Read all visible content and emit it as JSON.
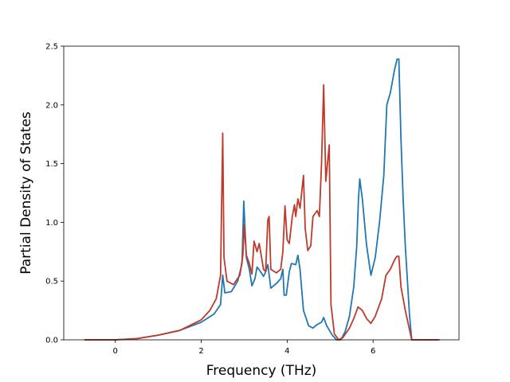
{
  "chart_data": {
    "type": "line",
    "title": "",
    "xlabel": "Frequency (THz)",
    "ylabel": "Partial Density of States",
    "xlim": [
      -1.2,
      8.0
    ],
    "ylim": [
      0,
      2.5
    ],
    "xticks": [
      0,
      2,
      4,
      6
    ],
    "yticks": [
      0.0,
      0.5,
      1.0,
      1.5,
      2.0,
      2.5
    ],
    "xtick_labels": [
      "0",
      "2",
      "4",
      "6"
    ],
    "ytick_labels": [
      "0.0",
      "0.5",
      "1.0",
      "1.5",
      "2.0",
      "2.5"
    ],
    "grid": false,
    "series": [
      {
        "color": "#1f77b4",
        "points": [
          [
            -0.72,
            0.0
          ],
          [
            0.0,
            0.0
          ],
          [
            0.5,
            0.01
          ],
          [
            1.0,
            0.04
          ],
          [
            1.5,
            0.08
          ],
          [
            2.0,
            0.15
          ],
          [
            2.3,
            0.22
          ],
          [
            2.45,
            0.3
          ],
          [
            2.5,
            0.55
          ],
          [
            2.55,
            0.4
          ],
          [
            2.7,
            0.41
          ],
          [
            2.85,
            0.5
          ],
          [
            2.95,
            0.65
          ],
          [
            2.99,
            1.18
          ],
          [
            3.05,
            0.7
          ],
          [
            3.12,
            0.6
          ],
          [
            3.18,
            0.46
          ],
          [
            3.25,
            0.52
          ],
          [
            3.3,
            0.62
          ],
          [
            3.38,
            0.58
          ],
          [
            3.45,
            0.54
          ],
          [
            3.5,
            0.58
          ],
          [
            3.55,
            0.64
          ],
          [
            3.62,
            0.44
          ],
          [
            3.75,
            0.48
          ],
          [
            3.85,
            0.52
          ],
          [
            3.9,
            0.6
          ],
          [
            3.93,
            0.38
          ],
          [
            3.98,
            0.38
          ],
          [
            4.05,
            0.58
          ],
          [
            4.1,
            0.65
          ],
          [
            4.2,
            0.64
          ],
          [
            4.25,
            0.72
          ],
          [
            4.3,
            0.6
          ],
          [
            4.38,
            0.25
          ],
          [
            4.5,
            0.12
          ],
          [
            4.6,
            0.1
          ],
          [
            4.7,
            0.13
          ],
          [
            4.8,
            0.15
          ],
          [
            4.85,
            0.19
          ],
          [
            4.92,
            0.12
          ],
          [
            5.05,
            0.04
          ],
          [
            5.15,
            0.0
          ],
          [
            5.25,
            0.0
          ],
          [
            5.35,
            0.07
          ],
          [
            5.45,
            0.2
          ],
          [
            5.55,
            0.45
          ],
          [
            5.62,
            0.8
          ],
          [
            5.66,
            1.2
          ],
          [
            5.69,
            1.37
          ],
          [
            5.75,
            1.2
          ],
          [
            5.85,
            0.8
          ],
          [
            5.95,
            0.55
          ],
          [
            6.05,
            0.7
          ],
          [
            6.15,
            1.0
          ],
          [
            6.25,
            1.4
          ],
          [
            6.32,
            2.0
          ],
          [
            6.4,
            2.1
          ],
          [
            6.5,
            2.3
          ],
          [
            6.56,
            2.39
          ],
          [
            6.6,
            2.39
          ],
          [
            6.65,
            1.7
          ],
          [
            6.7,
            1.2
          ],
          [
            6.75,
            0.8
          ],
          [
            6.85,
            0.2
          ],
          [
            6.9,
            0.0
          ],
          [
            7.5,
            0.0
          ]
        ]
      },
      {
        "color": "#c0392b",
        "points": [
          [
            -0.72,
            0.0
          ],
          [
            0.0,
            0.0
          ],
          [
            0.5,
            0.01
          ],
          [
            1.0,
            0.04
          ],
          [
            1.5,
            0.08
          ],
          [
            2.0,
            0.17
          ],
          [
            2.2,
            0.25
          ],
          [
            2.35,
            0.35
          ],
          [
            2.45,
            0.55
          ],
          [
            2.5,
            1.76
          ],
          [
            2.53,
            0.7
          ],
          [
            2.6,
            0.5
          ],
          [
            2.75,
            0.47
          ],
          [
            2.9,
            0.55
          ],
          [
            2.97,
            0.72
          ],
          [
            3.0,
            0.98
          ],
          [
            3.05,
            0.72
          ],
          [
            3.12,
            0.65
          ],
          [
            3.18,
            0.56
          ],
          [
            3.23,
            0.84
          ],
          [
            3.3,
            0.75
          ],
          [
            3.35,
            0.82
          ],
          [
            3.45,
            0.6
          ],
          [
            3.5,
            0.58
          ],
          [
            3.55,
            1.02
          ],
          [
            3.58,
            1.05
          ],
          [
            3.62,
            0.6
          ],
          [
            3.75,
            0.57
          ],
          [
            3.85,
            0.6
          ],
          [
            3.9,
            0.75
          ],
          [
            3.95,
            1.14
          ],
          [
            4.0,
            0.85
          ],
          [
            4.05,
            0.82
          ],
          [
            4.12,
            1.05
          ],
          [
            4.17,
            1.15
          ],
          [
            4.2,
            1.05
          ],
          [
            4.25,
            1.2
          ],
          [
            4.3,
            1.12
          ],
          [
            4.38,
            1.4
          ],
          [
            4.42,
            0.95
          ],
          [
            4.48,
            0.76
          ],
          [
            4.55,
            0.8
          ],
          [
            4.6,
            1.05
          ],
          [
            4.7,
            1.1
          ],
          [
            4.75,
            1.05
          ],
          [
            4.8,
            1.5
          ],
          [
            4.85,
            2.17
          ],
          [
            4.9,
            1.35
          ],
          [
            4.98,
            1.66
          ],
          [
            5.02,
            0.3
          ],
          [
            5.1,
            0.05
          ],
          [
            5.2,
            0.0
          ],
          [
            5.3,
            0.02
          ],
          [
            5.45,
            0.1
          ],
          [
            5.55,
            0.18
          ],
          [
            5.65,
            0.28
          ],
          [
            5.75,
            0.25
          ],
          [
            5.85,
            0.18
          ],
          [
            5.95,
            0.14
          ],
          [
            6.05,
            0.2
          ],
          [
            6.2,
            0.35
          ],
          [
            6.3,
            0.55
          ],
          [
            6.4,
            0.6
          ],
          [
            6.5,
            0.68
          ],
          [
            6.55,
            0.71
          ],
          [
            6.6,
            0.71
          ],
          [
            6.65,
            0.45
          ],
          [
            6.75,
            0.25
          ],
          [
            6.9,
            0.0
          ],
          [
            7.55,
            0.0
          ]
        ]
      }
    ]
  }
}
